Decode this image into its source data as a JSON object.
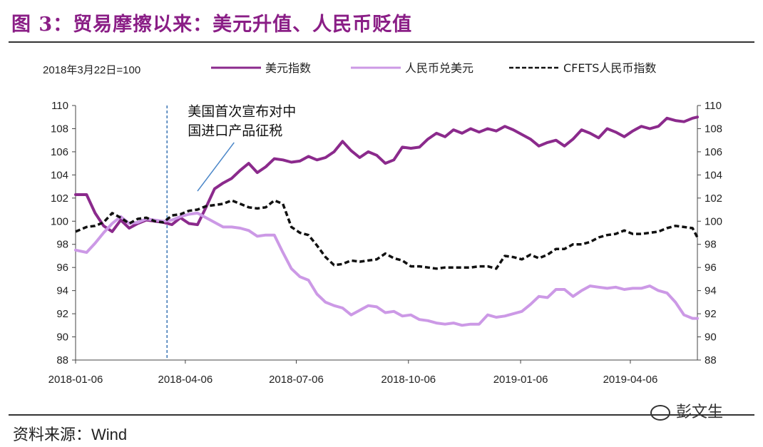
{
  "title": "图 3：贸易摩擦以来：美元升值、人民币贬值",
  "source_label": "资料来源：Wind",
  "watermark": "彭文生",
  "chart_data": {
    "type": "line",
    "base_note": "2018年3月22日=100",
    "ylim": [
      88,
      110
    ],
    "yticks": [
      88,
      90,
      92,
      94,
      96,
      98,
      100,
      102,
      104,
      106,
      108,
      110
    ],
    "xlabels": [
      "2018-01-06",
      "2018-04-06",
      "2018-07-06",
      "2018-10-06",
      "2019-01-06",
      "2019-04-06"
    ],
    "x_start": "2018-01-06",
    "x_end": "2019-05-31",
    "event_line": {
      "date": "2018-03-22",
      "text": [
        "美国首次宣布对中",
        "国进口产品征税"
      ]
    },
    "series": [
      {
        "name": "美元指数",
        "color": "#8b2a8c",
        "style": "solid",
        "points": [
          [
            "2018-01-06",
            102.3
          ],
          [
            "2018-01-15",
            102.3
          ],
          [
            "2018-01-22",
            100.7
          ],
          [
            "2018-01-29",
            99.6
          ],
          [
            "2018-02-05",
            99.1
          ],
          [
            "2018-02-12",
            100.1
          ],
          [
            "2018-02-19",
            99.4
          ],
          [
            "2018-02-26",
            99.8
          ],
          [
            "2018-03-05",
            100.1
          ],
          [
            "2018-03-12",
            100.0
          ],
          [
            "2018-03-19",
            99.9
          ],
          [
            "2018-03-26",
            99.7
          ],
          [
            "2018-04-02",
            100.3
          ],
          [
            "2018-04-09",
            99.8
          ],
          [
            "2018-04-16",
            99.7
          ],
          [
            "2018-04-23",
            101.2
          ],
          [
            "2018-04-30",
            102.8
          ],
          [
            "2018-05-07",
            103.3
          ],
          [
            "2018-05-14",
            103.7
          ],
          [
            "2018-05-21",
            104.4
          ],
          [
            "2018-05-28",
            105.0
          ],
          [
            "2018-06-04",
            104.2
          ],
          [
            "2018-06-11",
            104.7
          ],
          [
            "2018-06-18",
            105.4
          ],
          [
            "2018-06-25",
            105.3
          ],
          [
            "2018-07-02",
            105.1
          ],
          [
            "2018-07-09",
            105.2
          ],
          [
            "2018-07-16",
            105.6
          ],
          [
            "2018-07-23",
            105.3
          ],
          [
            "2018-07-30",
            105.5
          ],
          [
            "2018-08-06",
            106.0
          ],
          [
            "2018-08-13",
            106.9
          ],
          [
            "2018-08-20",
            106.1
          ],
          [
            "2018-08-27",
            105.5
          ],
          [
            "2018-09-03",
            106.0
          ],
          [
            "2018-09-10",
            105.7
          ],
          [
            "2018-09-17",
            105.0
          ],
          [
            "2018-09-24",
            105.3
          ],
          [
            "2018-10-01",
            106.4
          ],
          [
            "2018-10-08",
            106.3
          ],
          [
            "2018-10-15",
            106.4
          ],
          [
            "2018-10-22",
            107.1
          ],
          [
            "2018-10-29",
            107.6
          ],
          [
            "2018-11-05",
            107.3
          ],
          [
            "2018-11-12",
            107.9
          ],
          [
            "2018-11-19",
            107.6
          ],
          [
            "2018-11-26",
            108.0
          ],
          [
            "2018-12-03",
            107.7
          ],
          [
            "2018-12-10",
            108.0
          ],
          [
            "2018-12-17",
            107.8
          ],
          [
            "2018-12-24",
            108.2
          ],
          [
            "2018-12-31",
            107.9
          ],
          [
            "2019-01-07",
            107.5
          ],
          [
            "2019-01-14",
            107.1
          ],
          [
            "2019-01-21",
            106.5
          ],
          [
            "2019-01-28",
            106.8
          ],
          [
            "2019-02-04",
            107.0
          ],
          [
            "2019-02-11",
            106.5
          ],
          [
            "2019-02-18",
            107.1
          ],
          [
            "2019-02-25",
            107.9
          ],
          [
            "2019-03-04",
            107.6
          ],
          [
            "2019-03-11",
            107.2
          ],
          [
            "2019-03-18",
            108.0
          ],
          [
            "2019-03-25",
            107.7
          ],
          [
            "2019-04-01",
            107.3
          ],
          [
            "2019-04-08",
            107.8
          ],
          [
            "2019-04-15",
            108.2
          ],
          [
            "2019-04-22",
            108.0
          ],
          [
            "2019-04-29",
            108.2
          ],
          [
            "2019-05-06",
            108.9
          ],
          [
            "2019-05-13",
            108.7
          ],
          [
            "2019-05-20",
            108.6
          ],
          [
            "2019-05-27",
            108.9
          ],
          [
            "2019-05-31",
            109.0
          ]
        ]
      },
      {
        "name": "人民币兑美元",
        "color": "#cc99e6",
        "style": "solid",
        "points": [
          [
            "2018-01-06",
            97.5
          ],
          [
            "2018-01-15",
            97.3
          ],
          [
            "2018-01-22",
            98.1
          ],
          [
            "2018-01-29",
            99.0
          ],
          [
            "2018-02-05",
            99.8
          ],
          [
            "2018-02-12",
            100.4
          ],
          [
            "2018-02-19",
            99.8
          ],
          [
            "2018-02-26",
            99.9
          ],
          [
            "2018-03-05",
            100.2
          ],
          [
            "2018-03-12",
            100.1
          ],
          [
            "2018-03-19",
            100.0
          ],
          [
            "2018-03-26",
            100.1
          ],
          [
            "2018-04-02",
            100.4
          ],
          [
            "2018-04-09",
            100.6
          ],
          [
            "2018-04-16",
            100.7
          ],
          [
            "2018-04-23",
            100.3
          ],
          [
            "2018-04-30",
            99.9
          ],
          [
            "2018-05-07",
            99.5
          ],
          [
            "2018-05-14",
            99.5
          ],
          [
            "2018-05-21",
            99.4
          ],
          [
            "2018-05-28",
            99.2
          ],
          [
            "2018-06-04",
            98.7
          ],
          [
            "2018-06-11",
            98.8
          ],
          [
            "2018-06-18",
            98.8
          ],
          [
            "2018-06-25",
            97.3
          ],
          [
            "2018-07-02",
            95.9
          ],
          [
            "2018-07-09",
            95.2
          ],
          [
            "2018-07-16",
            94.9
          ],
          [
            "2018-07-23",
            93.7
          ],
          [
            "2018-07-30",
            93.0
          ],
          [
            "2018-08-06",
            92.7
          ],
          [
            "2018-08-13",
            92.5
          ],
          [
            "2018-08-20",
            91.9
          ],
          [
            "2018-08-27",
            92.3
          ],
          [
            "2018-09-03",
            92.7
          ],
          [
            "2018-09-10",
            92.6
          ],
          [
            "2018-09-17",
            92.1
          ],
          [
            "2018-09-24",
            92.2
          ],
          [
            "2018-10-01",
            91.8
          ],
          [
            "2018-10-08",
            91.9
          ],
          [
            "2018-10-15",
            91.5
          ],
          [
            "2018-10-22",
            91.4
          ],
          [
            "2018-10-29",
            91.2
          ],
          [
            "2018-11-05",
            91.1
          ],
          [
            "2018-11-12",
            91.2
          ],
          [
            "2018-11-19",
            91.0
          ],
          [
            "2018-11-26",
            91.1
          ],
          [
            "2018-12-03",
            91.1
          ],
          [
            "2018-12-10",
            91.9
          ],
          [
            "2018-12-17",
            91.7
          ],
          [
            "2018-12-24",
            91.8
          ],
          [
            "2018-12-31",
            92.0
          ],
          [
            "2019-01-07",
            92.2
          ],
          [
            "2019-01-14",
            92.8
          ],
          [
            "2019-01-21",
            93.5
          ],
          [
            "2019-01-28",
            93.4
          ],
          [
            "2019-02-04",
            94.1
          ],
          [
            "2019-02-11",
            94.1
          ],
          [
            "2019-02-18",
            93.5
          ],
          [
            "2019-02-25",
            94.0
          ],
          [
            "2019-03-04",
            94.4
          ],
          [
            "2019-03-11",
            94.3
          ],
          [
            "2019-03-18",
            94.2
          ],
          [
            "2019-03-25",
            94.3
          ],
          [
            "2019-04-01",
            94.1
          ],
          [
            "2019-04-08",
            94.2
          ],
          [
            "2019-04-15",
            94.2
          ],
          [
            "2019-04-22",
            94.4
          ],
          [
            "2019-04-29",
            94.0
          ],
          [
            "2019-05-06",
            93.8
          ],
          [
            "2019-05-13",
            93.0
          ],
          [
            "2019-05-20",
            91.9
          ],
          [
            "2019-05-27",
            91.6
          ],
          [
            "2019-05-31",
            91.6
          ]
        ]
      },
      {
        "name": "CFETS人民币指数",
        "color": "#111111",
        "style": "dashed",
        "points": [
          [
            "2018-01-06",
            99.1
          ],
          [
            "2018-01-15",
            99.5
          ],
          [
            "2018-01-22",
            99.6
          ],
          [
            "2018-01-29",
            99.9
          ],
          [
            "2018-02-05",
            100.7
          ],
          [
            "2018-02-12",
            100.3
          ],
          [
            "2018-02-19",
            99.8
          ],
          [
            "2018-02-26",
            100.2
          ],
          [
            "2018-03-05",
            100.3
          ],
          [
            "2018-03-12",
            100.0
          ],
          [
            "2018-03-19",
            99.9
          ],
          [
            "2018-03-26",
            100.5
          ],
          [
            "2018-04-02",
            100.6
          ],
          [
            "2018-04-09",
            100.9
          ],
          [
            "2018-04-16",
            101.0
          ],
          [
            "2018-04-23",
            101.3
          ],
          [
            "2018-04-30",
            101.4
          ],
          [
            "2018-05-07",
            101.5
          ],
          [
            "2018-05-14",
            101.8
          ],
          [
            "2018-05-21",
            101.5
          ],
          [
            "2018-05-28",
            101.2
          ],
          [
            "2018-06-04",
            101.1
          ],
          [
            "2018-06-11",
            101.2
          ],
          [
            "2018-06-18",
            101.8
          ],
          [
            "2018-06-25",
            101.5
          ],
          [
            "2018-07-02",
            99.5
          ],
          [
            "2018-07-09",
            99.0
          ],
          [
            "2018-07-16",
            98.8
          ],
          [
            "2018-07-23",
            97.9
          ],
          [
            "2018-07-30",
            96.9
          ],
          [
            "2018-08-06",
            96.2
          ],
          [
            "2018-08-13",
            96.3
          ],
          [
            "2018-08-20",
            96.6
          ],
          [
            "2018-08-27",
            96.5
          ],
          [
            "2018-09-03",
            96.6
          ],
          [
            "2018-09-10",
            96.7
          ],
          [
            "2018-09-17",
            97.2
          ],
          [
            "2018-09-24",
            96.8
          ],
          [
            "2018-10-01",
            96.6
          ],
          [
            "2018-10-08",
            96.1
          ],
          [
            "2018-10-15",
            96.1
          ],
          [
            "2018-10-22",
            96.0
          ],
          [
            "2018-10-29",
            95.9
          ],
          [
            "2018-11-05",
            96.0
          ],
          [
            "2018-11-12",
            96.0
          ],
          [
            "2018-11-19",
            96.0
          ],
          [
            "2018-11-26",
            96.0
          ],
          [
            "2018-12-03",
            96.1
          ],
          [
            "2018-12-10",
            96.1
          ],
          [
            "2018-12-17",
            95.9
          ],
          [
            "2018-12-24",
            97.0
          ],
          [
            "2018-12-31",
            96.9
          ],
          [
            "2019-01-07",
            96.7
          ],
          [
            "2019-01-14",
            97.1
          ],
          [
            "2019-01-21",
            96.8
          ],
          [
            "2019-01-28",
            97.1
          ],
          [
            "2019-02-04",
            97.6
          ],
          [
            "2019-02-11",
            97.6
          ],
          [
            "2019-02-18",
            98.0
          ],
          [
            "2019-02-25",
            98.0
          ],
          [
            "2019-03-04",
            98.2
          ],
          [
            "2019-03-11",
            98.6
          ],
          [
            "2019-03-18",
            98.8
          ],
          [
            "2019-03-25",
            98.9
          ],
          [
            "2019-04-01",
            99.2
          ],
          [
            "2019-04-08",
            98.9
          ],
          [
            "2019-04-15",
            98.9
          ],
          [
            "2019-04-22",
            99.0
          ],
          [
            "2019-04-29",
            99.1
          ],
          [
            "2019-05-06",
            99.4
          ],
          [
            "2019-05-13",
            99.6
          ],
          [
            "2019-05-20",
            99.5
          ],
          [
            "2019-05-27",
            99.4
          ],
          [
            "2019-05-31",
            98.6
          ]
        ]
      }
    ]
  }
}
